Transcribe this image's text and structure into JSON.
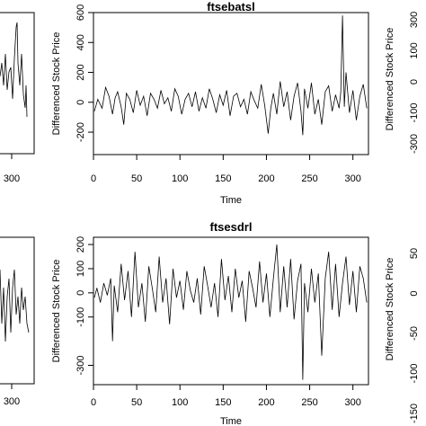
{
  "chart_data": [
    {
      "type": "line",
      "title": "ftsebatsl",
      "xlabel": "Time",
      "ylabel": "Differenced Stock Price",
      "xlim": [
        0,
        318
      ],
      "ylim": [
        -350,
        600
      ],
      "xticks": [
        0,
        50,
        100,
        150,
        200,
        250,
        300
      ],
      "yticks": [
        -200,
        0,
        200,
        400,
        600
      ],
      "series": [
        {
          "x": [
            1,
            5,
            10,
            14,
            18,
            22,
            25,
            28,
            32,
            35,
            38,
            42,
            46,
            50,
            54,
            58,
            62,
            66,
            70,
            74,
            78,
            82,
            86,
            90,
            94,
            98,
            102,
            106,
            110,
            114,
            118,
            122,
            126,
            130,
            134,
            138,
            142,
            146,
            150,
            154,
            158,
            162,
            166,
            170,
            174,
            178,
            182,
            186,
            190,
            194,
            198,
            202,
            205,
            208,
            212,
            216,
            220,
            224,
            228,
            232,
            236,
            240,
            242,
            244,
            248,
            252,
            256,
            260,
            264,
            268,
            272,
            276,
            280,
            284,
            286,
            288,
            290,
            292,
            296,
            300,
            304,
            308,
            312,
            316
          ],
          "values": [
            -60,
            20,
            -40,
            100,
            40,
            -80,
            30,
            70,
            -30,
            -150,
            60,
            20,
            -70,
            80,
            -20,
            40,
            -90,
            60,
            20,
            -40,
            80,
            -10,
            30,
            -60,
            90,
            40,
            -80,
            20,
            60,
            -30,
            70,
            -60,
            30,
            -40,
            90,
            20,
            -70,
            50,
            -20,
            80,
            -90,
            40,
            60,
            -30,
            20,
            -80,
            70,
            10,
            -40,
            120,
            -20,
            -210,
            -40,
            60,
            -80,
            140,
            -30,
            70,
            -120,
            40,
            130,
            -60,
            -220,
            90,
            -40,
            130,
            -80,
            20,
            -150,
            70,
            110,
            -60,
            50,
            -40,
            70,
            580,
            -30,
            200,
            -70,
            80,
            -120,
            40,
            120,
            -40
          ]
        }
      ]
    },
    {
      "type": "line",
      "title": "ftsesdrl",
      "xlabel": "Time",
      "ylabel": "Differenced Stock Price",
      "xlim": [
        0,
        318
      ],
      "ylim": [
        -380,
        230
      ],
      "xticks": [
        0,
        50,
        100,
        150,
        200,
        250,
        300
      ],
      "yticks": [
        -300,
        -100,
        0,
        100,
        200
      ],
      "series": [
        {
          "x": [
            1,
            4,
            8,
            12,
            16,
            20,
            22,
            24,
            28,
            32,
            36,
            40,
            44,
            48,
            52,
            56,
            60,
            64,
            68,
            72,
            76,
            80,
            84,
            88,
            92,
            96,
            100,
            104,
            108,
            112,
            116,
            120,
            124,
            128,
            132,
            136,
            140,
            144,
            148,
            152,
            156,
            160,
            164,
            168,
            172,
            176,
            180,
            184,
            188,
            192,
            196,
            200,
            204,
            208,
            212,
            216,
            220,
            224,
            228,
            232,
            236,
            240,
            242,
            244,
            248,
            252,
            256,
            260,
            264,
            268,
            272,
            276,
            280,
            284,
            288,
            292,
            296,
            300,
            304,
            308,
            312,
            316
          ],
          "values": [
            -20,
            20,
            -40,
            40,
            -10,
            60,
            -200,
            30,
            -80,
            120,
            -30,
            90,
            -100,
            170,
            -60,
            40,
            -120,
            110,
            20,
            -80,
            150,
            -40,
            60,
            -130,
            100,
            -20,
            50,
            -70,
            90,
            10,
            -40,
            60,
            -90,
            110,
            30,
            -60,
            40,
            -100,
            140,
            -30,
            70,
            -80,
            100,
            -20,
            50,
            -120,
            90,
            20,
            -60,
            130,
            -40,
            80,
            -100,
            60,
            200,
            -80,
            110,
            -60,
            140,
            -110,
            50,
            120,
            -360,
            40,
            -80,
            100,
            -40,
            80,
            -260,
            60,
            170,
            -70,
            120,
            -100,
            40,
            150,
            -50,
            90,
            -80,
            110,
            60,
            -40
          ]
        }
      ]
    }
  ],
  "partial": {
    "left_top_xtick": "300",
    "left_bottom_xtick": "300",
    "right_top_ylabel": "Differenced Stock Price",
    "right_top_yticks": [
      "300",
      "100",
      "0",
      "-100",
      "-300"
    ],
    "right_bottom_ylabel": "Differenced Stock Price",
    "right_bottom_yticks": [
      "50",
      "0",
      "-50",
      "-100",
      "-150"
    ]
  }
}
